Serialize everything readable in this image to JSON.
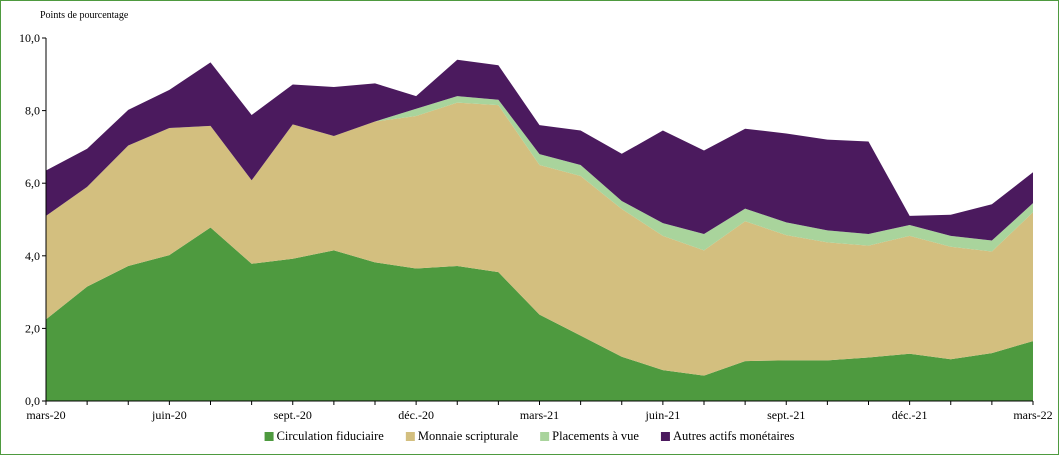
{
  "chart_data": {
    "type": "area",
    "stacked": true,
    "unit_label": "Points de pourcentage",
    "x": [
      "mars-20",
      "avr.-20",
      "mai-20",
      "juin-20",
      "juil.-20",
      "août-20",
      "sept.-20",
      "oct.-20",
      "nov.-20",
      "déc.-20",
      "janv.-21",
      "févr.-21",
      "mars-21",
      "avr.-21",
      "mai-21",
      "juin-21",
      "juil.-21",
      "août-21",
      "sept.-21",
      "oct.-21",
      "nov.-21",
      "déc.-21",
      "janv.-22",
      "févr.-22",
      "mars-22"
    ],
    "x_tick_labels": [
      "mars-20",
      "",
      "",
      "juin-20",
      "",
      "",
      "sept.-20",
      "",
      "",
      "déc.-20",
      "",
      "",
      "mars-21",
      "",
      "",
      "juin-21",
      "",
      "",
      "sept.-21",
      "",
      "",
      "déc.-21",
      "",
      "",
      "mars-22"
    ],
    "ylim": [
      0,
      10
    ],
    "y_ticks": [
      "0,0",
      "2,0",
      "4,0",
      "6,0",
      "8,0",
      "10,0"
    ],
    "grid": false,
    "legend_position": "bottom",
    "series": [
      {
        "name": "Circulation fiduciaire",
        "color": "#4e9a3f",
        "values": [
          2.25,
          3.15,
          3.72,
          4.02,
          4.78,
          3.78,
          3.92,
          4.15,
          3.82,
          3.65,
          3.72,
          3.55,
          2.38,
          1.8,
          1.22,
          0.85,
          0.7,
          1.1,
          1.12,
          1.12,
          1.2,
          1.3,
          1.15,
          1.32,
          1.65
        ]
      },
      {
        "name": "Monnaie scripturale",
        "color": "#d3bf7f",
        "values": [
          2.85,
          2.75,
          3.32,
          3.5,
          2.8,
          2.3,
          3.7,
          3.15,
          3.88,
          4.2,
          4.5,
          4.6,
          4.12,
          4.4,
          4.07,
          3.7,
          3.45,
          3.85,
          3.45,
          3.25,
          3.08,
          3.25,
          3.1,
          2.8,
          3.55
        ]
      },
      {
        "name": "Placements à vue",
        "color": "#a9d49c",
        "values": [
          0.0,
          0.0,
          0.0,
          0.0,
          0.0,
          0.0,
          0.0,
          0.0,
          0.0,
          0.2,
          0.18,
          0.15,
          0.3,
          0.3,
          0.22,
          0.35,
          0.45,
          0.35,
          0.35,
          0.33,
          0.32,
          0.3,
          0.3,
          0.3,
          0.25
        ]
      },
      {
        "name": "Autres actifs monétaires",
        "color": "#4b1a5e",
        "values": [
          1.25,
          1.05,
          0.98,
          1.05,
          1.75,
          1.8,
          1.1,
          1.35,
          1.05,
          0.35,
          1.0,
          0.95,
          0.8,
          0.95,
          1.3,
          2.55,
          2.3,
          2.2,
          2.45,
          2.5,
          2.55,
          0.25,
          0.58,
          1.0,
          0.85
        ]
      }
    ]
  }
}
